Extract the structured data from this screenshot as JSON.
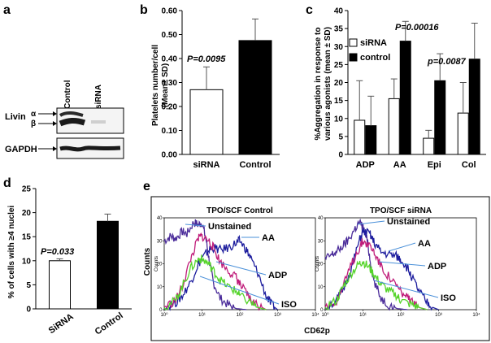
{
  "panel_letters": {
    "a": "a",
    "b": "b",
    "c": "c",
    "d": "d",
    "e": "e"
  },
  "western_blot": {
    "lane_labels": [
      "Control",
      "siRNA"
    ],
    "row_labels": {
      "livin": "Livin",
      "gapdh": "GAPDH"
    },
    "isoform_labels": [
      "α",
      "β"
    ]
  },
  "chart_data": [
    {
      "panel": "b",
      "type": "bar",
      "categories": [
        "siRNA",
        "Control"
      ],
      "values": [
        0.27,
        0.475
      ],
      "errors": [
        0.095,
        0.09
      ],
      "colors": [
        "#ffffff",
        "#000000"
      ],
      "title": "",
      "xlabel": "",
      "ylabel": "Platelets number/cell (Mean± SD)",
      "ylim": [
        0,
        0.6
      ],
      "yticks": [
        "0.00",
        "0.10",
        "0.20",
        "0.30",
        "0.40",
        "0.50",
        "0.60"
      ],
      "annotation": "P=0.0095"
    },
    {
      "panel": "c",
      "type": "bar",
      "categories": [
        "ADP",
        "AA",
        "Epi",
        "Col"
      ],
      "series": [
        {
          "name": "siRNA",
          "color": "#ffffff",
          "values": [
            9.5,
            15.5,
            4.5,
            11.5
          ],
          "errors": [
            11,
            5.5,
            2.2,
            8.5
          ]
        },
        {
          "name": "control",
          "color": "#000000",
          "values": [
            8,
            31.5,
            20.5,
            26.5
          ],
          "errors": [
            8.2,
            5.5,
            7.5,
            10
          ]
        }
      ],
      "title": "",
      "ylabel": "%Aggregation in response to various agonists (mean ± SD)",
      "ylim": [
        0,
        40
      ],
      "yticks": [
        "0",
        "5",
        "10",
        "15",
        "20",
        "25",
        "30",
        "35",
        "40"
      ],
      "annotations": [
        "P=0.00016",
        "p=0.0087"
      ]
    },
    {
      "panel": "d",
      "type": "bar",
      "categories": [
        "SiRNA",
        "Control"
      ],
      "values": [
        10,
        18.2
      ],
      "errors": [
        0.4,
        1.5
      ],
      "colors": [
        "#ffffff",
        "#000000"
      ],
      "ylabel": "% of cells with ≥4 nuclei",
      "ylim": [
        0,
        25
      ],
      "yticks": [
        "0",
        "5",
        "10",
        "15",
        "20",
        "25"
      ],
      "annotation": "P=0.033"
    },
    {
      "panel": "e",
      "type": "line",
      "xlabel": "CD62p",
      "ylabel": "Counts",
      "xscale": "log",
      "xlim": [
        1,
        10000
      ],
      "xticks": [
        "10⁰",
        "10¹",
        "10²",
        "10³",
        "10⁴"
      ],
      "ylim": [
        0,
        40
      ],
      "yticks": [
        "0",
        "10",
        "20",
        "30",
        "40"
      ],
      "curve_labels": [
        "Unstained",
        "AA",
        "ADP",
        "ISO"
      ],
      "plots": [
        {
          "title": "TPO/SCF Control",
          "ylabel_small": "Counts",
          "series": [
            {
              "name": "Unstained",
              "color": "#4b2c9a",
              "x": [
                1,
                1.5,
                2,
                3,
                4,
                6,
                8,
                10,
                13,
                16,
                20,
                30,
                50,
                80,
                150
              ],
              "y": [
                30,
                32,
                31,
                34,
                33,
                38,
                37,
                38,
                30,
                20,
                12,
                5,
                2,
                0.5,
                0
              ]
            },
            {
              "name": "AA",
              "color": "#1d1d9e",
              "x": [
                1,
                2,
                3,
                5,
                8,
                10,
                15,
                20,
                30,
                50,
                80,
                100,
                150,
                200,
                300,
                500,
                700,
                1000
              ],
              "y": [
                1,
                3,
                6,
                12,
                20,
                22,
                26,
                27,
                26,
                27,
                29,
                30,
                26,
                22,
                16,
                6,
                2,
                0
              ]
            },
            {
              "name": "ADP",
              "color": "#c01c7a",
              "x": [
                1,
                2,
                3,
                5,
                8,
                10,
                15,
                20,
                30,
                50,
                80,
                100,
                150,
                200,
                300,
                500
              ],
              "y": [
                1,
                4,
                10,
                22,
                31,
                32,
                30,
                27,
                21,
                17,
                14,
                11,
                7,
                4,
                2,
                0
              ]
            },
            {
              "name": "ISO",
              "color": "#55d42a",
              "x": [
                1,
                2,
                3,
                5,
                8,
                10,
                15,
                20,
                30,
                50,
                80,
                100,
                200,
                300,
                500
              ],
              "y": [
                1,
                4,
                10,
                18,
                22,
                22,
                20,
                17,
                13,
                10,
                8,
                6,
                3,
                1,
                0
              ]
            }
          ]
        },
        {
          "title": "TPO/SCF siRNA",
          "ylabel_small": "Counts",
          "series": [
            {
              "name": "Unstained",
              "color": "#4b2c9a",
              "x": [
                1,
                1.5,
                2,
                3,
                4,
                6,
                8,
                10,
                13,
                16,
                20,
                30,
                50,
                80,
                150
              ],
              "y": [
                22,
                24,
                25,
                28,
                30,
                35,
                38,
                36,
                30,
                20,
                12,
                5,
                2,
                0.5,
                0
              ]
            },
            {
              "name": "AA",
              "color": "#1d1d9e",
              "x": [
                1,
                2,
                3,
                5,
                8,
                10,
                15,
                20,
                30,
                50,
                80,
                100,
                150,
                200,
                300,
                500,
                700,
                1000
              ],
              "y": [
                1,
                4,
                9,
                18,
                30,
                34,
                33,
                29,
                25,
                24,
                23,
                22,
                18,
                14,
                8,
                3,
                1,
                0
              ]
            },
            {
              "name": "ADP",
              "color": "#c01c7a",
              "x": [
                1,
                2,
                3,
                5,
                8,
                10,
                15,
                20,
                30,
                50,
                80,
                100,
                150,
                200,
                300,
                500
              ],
              "y": [
                1,
                4,
                10,
                20,
                27,
                30,
                28,
                25,
                19,
                14,
                10,
                8,
                5,
                3,
                1,
                0
              ]
            },
            {
              "name": "ISO",
              "color": "#55d42a",
              "x": [
                1,
                2,
                3,
                5,
                8,
                10,
                15,
                20,
                30,
                50,
                80,
                100,
                200,
                300,
                500
              ],
              "y": [
                1,
                4,
                10,
                16,
                20,
                21,
                18,
                15,
                11,
                8,
                6,
                4,
                2,
                1,
                0
              ]
            }
          ]
        }
      ]
    }
  ]
}
